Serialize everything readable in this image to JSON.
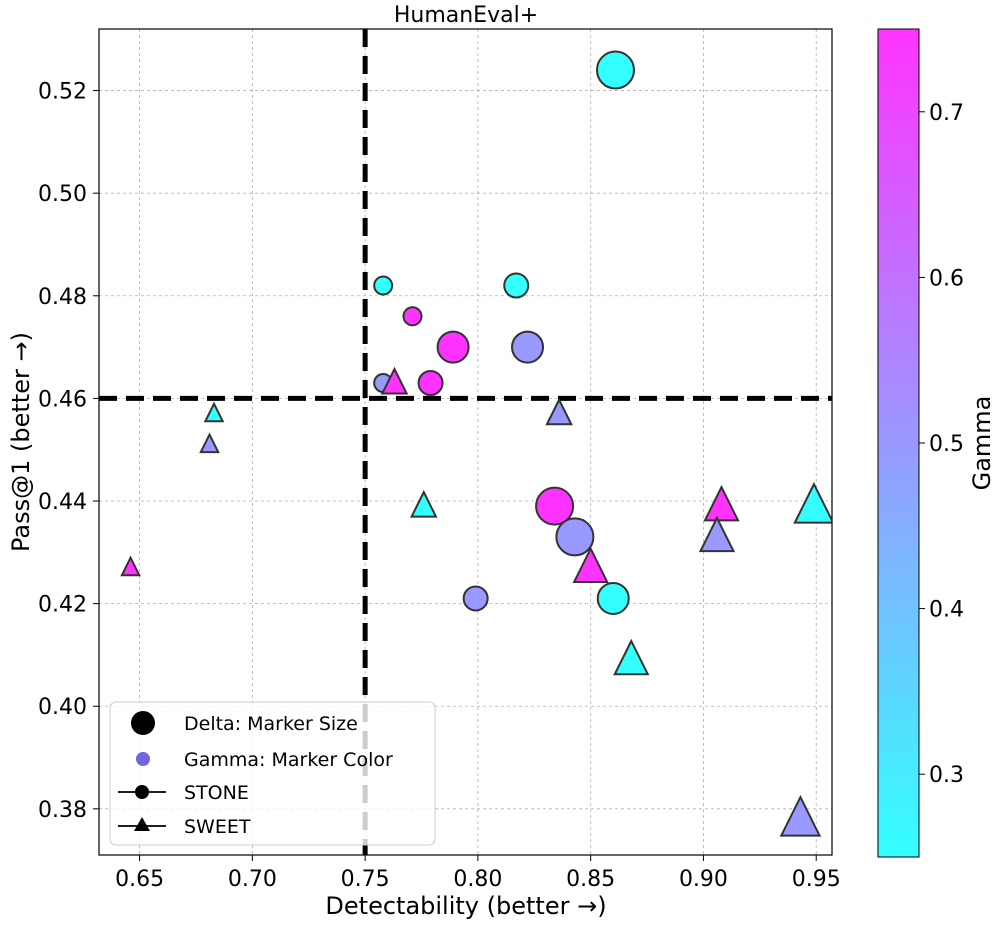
{
  "chart_data": {
    "type": "scatter",
    "title": "HumanEval+",
    "xlabel": "Detectability (better →)",
    "ylabel": "Pass@1 (better →)",
    "xlim": [
      0.632,
      0.957
    ],
    "ylim": [
      0.371,
      0.532
    ],
    "xticks": [
      "0.65",
      "0.70",
      "0.75",
      "0.80",
      "0.85",
      "0.90",
      "0.95"
    ],
    "yticks": [
      "0.38",
      "0.40",
      "0.42",
      "0.44",
      "0.46",
      "0.48",
      "0.50",
      "0.52"
    ],
    "grid": true,
    "reference_lines": {
      "x": 0.75,
      "y": 0.46
    },
    "colorbar": {
      "label": "Gamma",
      "range": [
        0.25,
        0.75
      ],
      "ticks": [
        "0.3",
        "0.4",
        "0.5",
        "0.6",
        "0.7"
      ],
      "colormap": "cool",
      "low_color": "#33ffff",
      "high_color": "#ff33ff"
    },
    "legend": {
      "placement": "lower-left",
      "entries": [
        "Delta: Marker Size",
        "Gamma: Marker Color",
        "STONE",
        "SWEET"
      ]
    },
    "series": [
      {
        "name": "STONE",
        "marker": "circle",
        "points": [
          {
            "x": 0.861,
            "y": 0.524,
            "gamma": 0.25,
            "delta": 4
          },
          {
            "x": 0.758,
            "y": 0.482,
            "gamma": 0.25,
            "delta": 1
          },
          {
            "x": 0.817,
            "y": 0.482,
            "gamma": 0.25,
            "delta": 2
          },
          {
            "x": 0.771,
            "y": 0.476,
            "gamma": 0.75,
            "delta": 1
          },
          {
            "x": 0.789,
            "y": 0.47,
            "gamma": 0.75,
            "delta": 3
          },
          {
            "x": 0.822,
            "y": 0.47,
            "gamma": 0.5,
            "delta": 3
          },
          {
            "x": 0.758,
            "y": 0.463,
            "gamma": 0.5,
            "delta": 1
          },
          {
            "x": 0.779,
            "y": 0.463,
            "gamma": 0.75,
            "delta": 2
          },
          {
            "x": 0.834,
            "y": 0.439,
            "gamma": 0.75,
            "delta": 4
          },
          {
            "x": 0.843,
            "y": 0.433,
            "gamma": 0.5,
            "delta": 4
          },
          {
            "x": 0.799,
            "y": 0.421,
            "gamma": 0.5,
            "delta": 2
          },
          {
            "x": 0.86,
            "y": 0.421,
            "gamma": 0.25,
            "delta": 3
          }
        ]
      },
      {
        "name": "SWEET",
        "marker": "triangle",
        "points": [
          {
            "x": 0.683,
            "y": 0.457,
            "gamma": 0.25,
            "delta": 1
          },
          {
            "x": 0.681,
            "y": 0.451,
            "gamma": 0.5,
            "delta": 1
          },
          {
            "x": 0.646,
            "y": 0.427,
            "gamma": 0.75,
            "delta": 1
          },
          {
            "x": 0.763,
            "y": 0.463,
            "gamma": 0.75,
            "delta": 2
          },
          {
            "x": 0.836,
            "y": 0.457,
            "gamma": 0.5,
            "delta": 2
          },
          {
            "x": 0.776,
            "y": 0.439,
            "gamma": 0.25,
            "delta": 2
          },
          {
            "x": 0.908,
            "y": 0.439,
            "gamma": 0.75,
            "delta": 3
          },
          {
            "x": 0.949,
            "y": 0.439,
            "gamma": 0.25,
            "delta": 4
          },
          {
            "x": 0.906,
            "y": 0.433,
            "gamma": 0.5,
            "delta": 3
          },
          {
            "x": 0.85,
            "y": 0.427,
            "gamma": 0.75,
            "delta": 3
          },
          {
            "x": 0.868,
            "y": 0.409,
            "gamma": 0.25,
            "delta": 3
          },
          {
            "x": 0.943,
            "y": 0.378,
            "gamma": 0.5,
            "delta": 4
          }
        ]
      }
    ]
  }
}
